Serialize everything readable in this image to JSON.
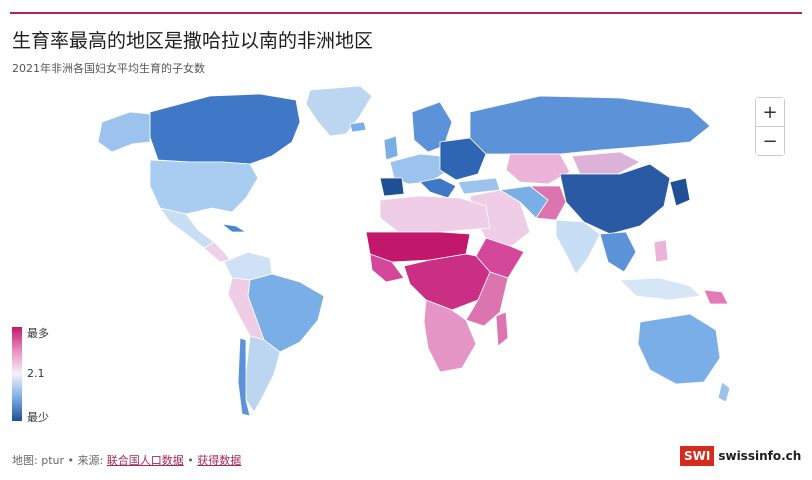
{
  "header": {
    "title": "生育率最高的地区是撒哈拉以南的非洲地区",
    "subtitle": "2021年非洲各国妇女平均生育的子女数"
  },
  "legend": {
    "top_label": "最多",
    "mid_label": "2.1",
    "bottom_label": "最少"
  },
  "zoom": {
    "in_label": "+",
    "out_label": "−"
  },
  "footer": {
    "map_label": "地图:",
    "author": "ptur",
    "sep1": "•",
    "source_label": "来源:",
    "source_link": "联合国人口数据",
    "sep2": "•",
    "data_link": "获得数据"
  },
  "brand": {
    "logo": "SWI",
    "name": "swissinfo.ch"
  },
  "colors": {
    "high": "#c2186b",
    "mid_high": "#e88ec0",
    "replacement": "#f5f1f8",
    "mid_low": "#79aee6",
    "low": "#1f4f94",
    "accent": "#a52a5a"
  }
}
